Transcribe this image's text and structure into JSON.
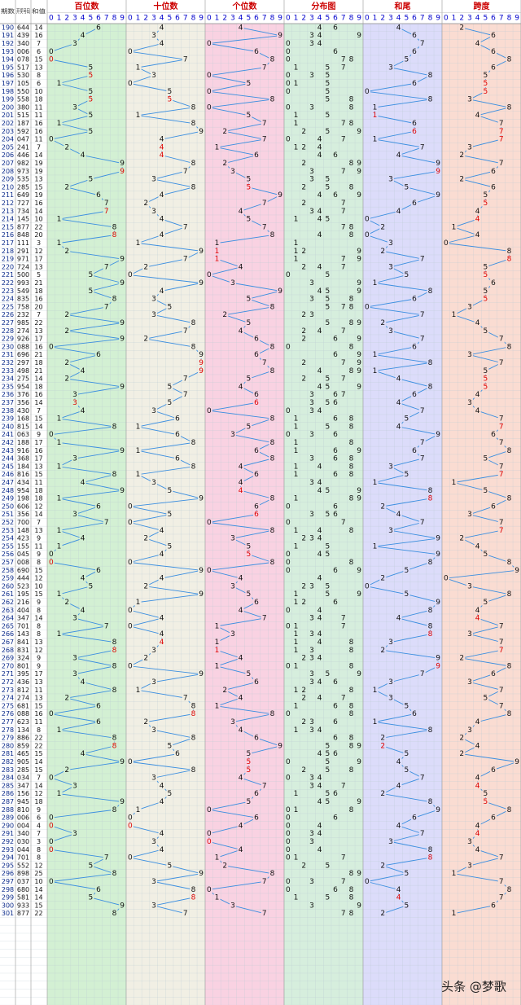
{
  "header": {
    "cols": [
      "期数",
      "开奖号码",
      "和值"
    ],
    "groups": [
      "百位数",
      "十位数",
      "个位数",
      "分布图",
      "和尾",
      "跨度"
    ],
    "digits": [
      0,
      1,
      2,
      3,
      4,
      5,
      6,
      7,
      8,
      9
    ]
  },
  "rows": [
    [
      190,
      "644",
      14,
      6,
      4,
      4,
      4,
      2
    ],
    [
      191,
      "439",
      16,
      4,
      3,
      9,
      6,
      6
    ],
    [
      192,
      "340",
      7,
      3,
      4,
      0,
      7,
      4
    ],
    [
      193,
      "006",
      6,
      0,
      0,
      6,
      6,
      6
    ],
    [
      194,
      "078",
      15,
      0,
      7,
      8,
      5,
      8
    ],
    [
      195,
      "517",
      13,
      5,
      1,
      7,
      3,
      6
    ],
    [
      196,
      "530",
      8,
      5,
      3,
      0,
      8,
      5
    ],
    [
      197,
      "105",
      6,
      1,
      0,
      5,
      6,
      5
    ],
    [
      198,
      "550",
      10,
      5,
      5,
      0,
      0,
      5
    ],
    [
      199,
      "558",
      18,
      5,
      5,
      8,
      8,
      3
    ],
    [
      200,
      "380",
      11,
      3,
      8,
      0,
      1,
      8
    ],
    [
      201,
      "515",
      11,
      5,
      1,
      5,
      1,
      4
    ],
    [
      202,
      "187",
      16,
      1,
      8,
      7,
      6,
      7
    ],
    [
      203,
      "592",
      16,
      5,
      9,
      2,
      6,
      7
    ],
    [
      204,
      "047",
      11,
      0,
      4,
      7,
      1,
      7
    ],
    [
      205,
      "241",
      7,
      2,
      4,
      1,
      7,
      3
    ],
    [
      206,
      "446",
      14,
      4,
      4,
      6,
      4,
      2
    ],
    [
      207,
      "982",
      19,
      9,
      8,
      2,
      9,
      7
    ],
    [
      208,
      "973",
      19,
      9,
      7,
      3,
      9,
      6
    ],
    [
      209,
      "535",
      13,
      5,
      3,
      5,
      3,
      2
    ],
    [
      210,
      "285",
      15,
      2,
      8,
      5,
      5,
      6
    ],
    [
      211,
      "649",
      19,
      6,
      4,
      9,
      9,
      5
    ],
    [
      212,
      "727",
      16,
      7,
      2,
      7,
      6,
      5
    ],
    [
      213,
      "734",
      14,
      7,
      3,
      4,
      4,
      4
    ],
    [
      214,
      "145",
      10,
      1,
      4,
      5,
      0,
      4
    ],
    [
      215,
      "877",
      22,
      8,
      7,
      7,
      2,
      1
    ],
    [
      216,
      "848",
      20,
      8,
      4,
      8,
      0,
      4
    ],
    [
      217,
      "111",
      3,
      1,
      1,
      1,
      3,
      0
    ],
    [
      218,
      "291",
      12,
      2,
      9,
      1,
      2,
      8
    ],
    [
      219,
      "971",
      17,
      9,
      7,
      1,
      7,
      8
    ],
    [
      220,
      "724",
      13,
      7,
      2,
      4,
      3,
      5
    ],
    [
      221,
      "500",
      5,
      5,
      0,
      0,
      5,
      5
    ],
    [
      222,
      "993",
      21,
      9,
      9,
      3,
      1,
      6
    ],
    [
      223,
      "549",
      18,
      5,
      4,
      9,
      8,
      5
    ],
    [
      224,
      "835",
      16,
      8,
      3,
      5,
      6,
      5
    ],
    [
      225,
      "758",
      20,
      7,
      5,
      8,
      0,
      3
    ],
    [
      226,
      "232",
      7,
      2,
      3,
      2,
      7,
      1
    ],
    [
      227,
      "985",
      22,
      9,
      8,
      5,
      2,
      4
    ],
    [
      228,
      "274",
      13,
      2,
      7,
      4,
      3,
      5
    ],
    [
      229,
      "926",
      17,
      9,
      2,
      6,
      7,
      7
    ],
    [
      230,
      "088",
      16,
      0,
      8,
      8,
      6,
      8
    ],
    [
      231,
      "696",
      21,
      6,
      9,
      6,
      1,
      3
    ],
    [
      232,
      "297",
      18,
      2,
      9,
      7,
      8,
      7
    ],
    [
      233,
      "498",
      21,
      4,
      9,
      8,
      1,
      5
    ],
    [
      234,
      "275",
      14,
      2,
      7,
      5,
      4,
      5
    ],
    [
      235,
      "954",
      18,
      9,
      5,
      4,
      8,
      5
    ],
    [
      236,
      "376",
      16,
      3,
      7,
      6,
      6,
      4
    ],
    [
      237,
      "356",
      14,
      3,
      5,
      6,
      4,
      3
    ],
    [
      238,
      "430",
      7,
      4,
      3,
      0,
      7,
      4
    ],
    [
      239,
      "168",
      15,
      1,
      6,
      8,
      5,
      7
    ],
    [
      240,
      "815",
      14,
      8,
      1,
      5,
      4,
      7
    ],
    [
      241,
      "063",
      9,
      0,
      6,
      3,
      9,
      6
    ],
    [
      242,
      "188",
      17,
      1,
      8,
      8,
      7,
      7
    ],
    [
      243,
      "916",
      16,
      9,
      1,
      6,
      6,
      8
    ],
    [
      244,
      "368",
      17,
      3,
      6,
      8,
      7,
      5
    ],
    [
      245,
      "184",
      13,
      1,
      8,
      4,
      3,
      7
    ],
    [
      246,
      "816",
      15,
      8,
      1,
      6,
      5,
      7
    ],
    [
      247,
      "434",
      11,
      4,
      3,
      4,
      1,
      1
    ],
    [
      248,
      "954",
      18,
      9,
      5,
      4,
      8,
      5
    ],
    [
      249,
      "198",
      18,
      1,
      9,
      8,
      8,
      8
    ],
    [
      250,
      "606",
      12,
      6,
      0,
      6,
      2,
      6
    ],
    [
      251,
      "356",
      14,
      3,
      5,
      6,
      4,
      3
    ],
    [
      252,
      "700",
      7,
      7,
      0,
      0,
      7,
      7
    ],
    [
      253,
      "148",
      13,
      1,
      4,
      8,
      3,
      7
    ],
    [
      254,
      "423",
      9,
      4,
      2,
      3,
      9,
      2
    ],
    [
      255,
      "155",
      11,
      1,
      5,
      5,
      1,
      4
    ],
    [
      256,
      "045",
      9,
      0,
      4,
      5,
      9,
      5
    ],
    [
      257,
      "008",
      8,
      0,
      0,
      8,
      8,
      8
    ],
    [
      258,
      "690",
      15,
      6,
      9,
      0,
      5,
      9
    ],
    [
      259,
      "444",
      12,
      4,
      4,
      4,
      2,
      0
    ],
    [
      260,
      "523",
      10,
      5,
      2,
      3,
      0,
      3
    ],
    [
      261,
      "195",
      15,
      1,
      9,
      5,
      5,
      8
    ],
    [
      262,
      "216",
      9,
      2,
      1,
      6,
      9,
      5
    ],
    [
      263,
      "404",
      8,
      4,
      0,
      4,
      8,
      4
    ],
    [
      264,
      "347",
      14,
      3,
      4,
      7,
      4,
      4
    ],
    [
      265,
      "701",
      8,
      7,
      0,
      1,
      8,
      7
    ],
    [
      266,
      "143",
      8,
      1,
      4,
      3,
      8,
      3
    ],
    [
      267,
      "841",
      13,
      8,
      4,
      1,
      3,
      7
    ],
    [
      268,
      "831",
      12,
      8,
      3,
      1,
      2,
      7
    ],
    [
      269,
      "324",
      9,
      3,
      2,
      4,
      9,
      2
    ],
    [
      270,
      "801",
      9,
      8,
      0,
      1,
      9,
      8
    ],
    [
      271,
      "395",
      17,
      3,
      9,
      5,
      7,
      6
    ],
    [
      272,
      "436",
      13,
      4,
      3,
      6,
      3,
      3
    ],
    [
      273,
      "812",
      11,
      8,
      1,
      2,
      1,
      7
    ],
    [
      274,
      "274",
      13,
      2,
      7,
      4,
      3,
      5
    ],
    [
      275,
      "681",
      15,
      6,
      8,
      1,
      5,
      7
    ],
    [
      276,
      "088",
      16,
      0,
      8,
      8,
      6,
      8
    ],
    [
      277,
      "623",
      11,
      6,
      2,
      3,
      1,
      4
    ],
    [
      278,
      "134",
      8,
      1,
      3,
      4,
      8,
      3
    ],
    [
      279,
      "886",
      22,
      8,
      8,
      6,
      2,
      2
    ],
    [
      280,
      "859",
      22,
      8,
      5,
      9,
      2,
      4
    ],
    [
      281,
      "465",
      15,
      4,
      6,
      5,
      5,
      2
    ],
    [
      282,
      "905",
      14,
      9,
      0,
      5,
      4,
      9
    ],
    [
      283,
      "285",
      15,
      2,
      8,
      5,
      5,
      6
    ],
    [
      284,
      "034",
      7,
      0,
      3,
      4,
      7,
      4
    ],
    [
      285,
      "347",
      14,
      3,
      4,
      7,
      4,
      4
    ],
    [
      286,
      "156",
      12,
      1,
      5,
      6,
      2,
      5
    ],
    [
      287,
      "945",
      18,
      9,
      4,
      5,
      8,
      5
    ],
    [
      288,
      "810",
      9,
      8,
      1,
      0,
      9,
      8
    ],
    [
      289,
      "006",
      6,
      0,
      0,
      6,
      6,
      6
    ],
    [
      290,
      "004",
      4,
      0,
      0,
      4,
      4,
      4
    ],
    [
      291,
      "340",
      7,
      3,
      4,
      0,
      7,
      4
    ],
    [
      292,
      "030",
      3,
      0,
      3,
      0,
      3,
      3
    ],
    [
      293,
      "044",
      8,
      0,
      4,
      4,
      8,
      4
    ],
    [
      294,
      "701",
      8,
      7,
      0,
      1,
      8,
      7
    ],
    [
      295,
      "552",
      12,
      5,
      5,
      2,
      2,
      3
    ],
    [
      296,
      "898",
      25,
      8,
      9,
      8,
      5,
      1
    ],
    [
      297,
      "037",
      10,
      0,
      3,
      7,
      0,
      7
    ],
    [
      298,
      "680",
      14,
      6,
      8,
      0,
      4,
      8
    ],
    [
      299,
      "581",
      14,
      5,
      8,
      1,
      4,
      7
    ],
    [
      300,
      "933",
      15,
      9,
      3,
      3,
      5,
      6
    ],
    [
      301,
      "877",
      22,
      8,
      7,
      7,
      2,
      1
    ]
  ],
  "watermark": "头条 @梦歌"
}
